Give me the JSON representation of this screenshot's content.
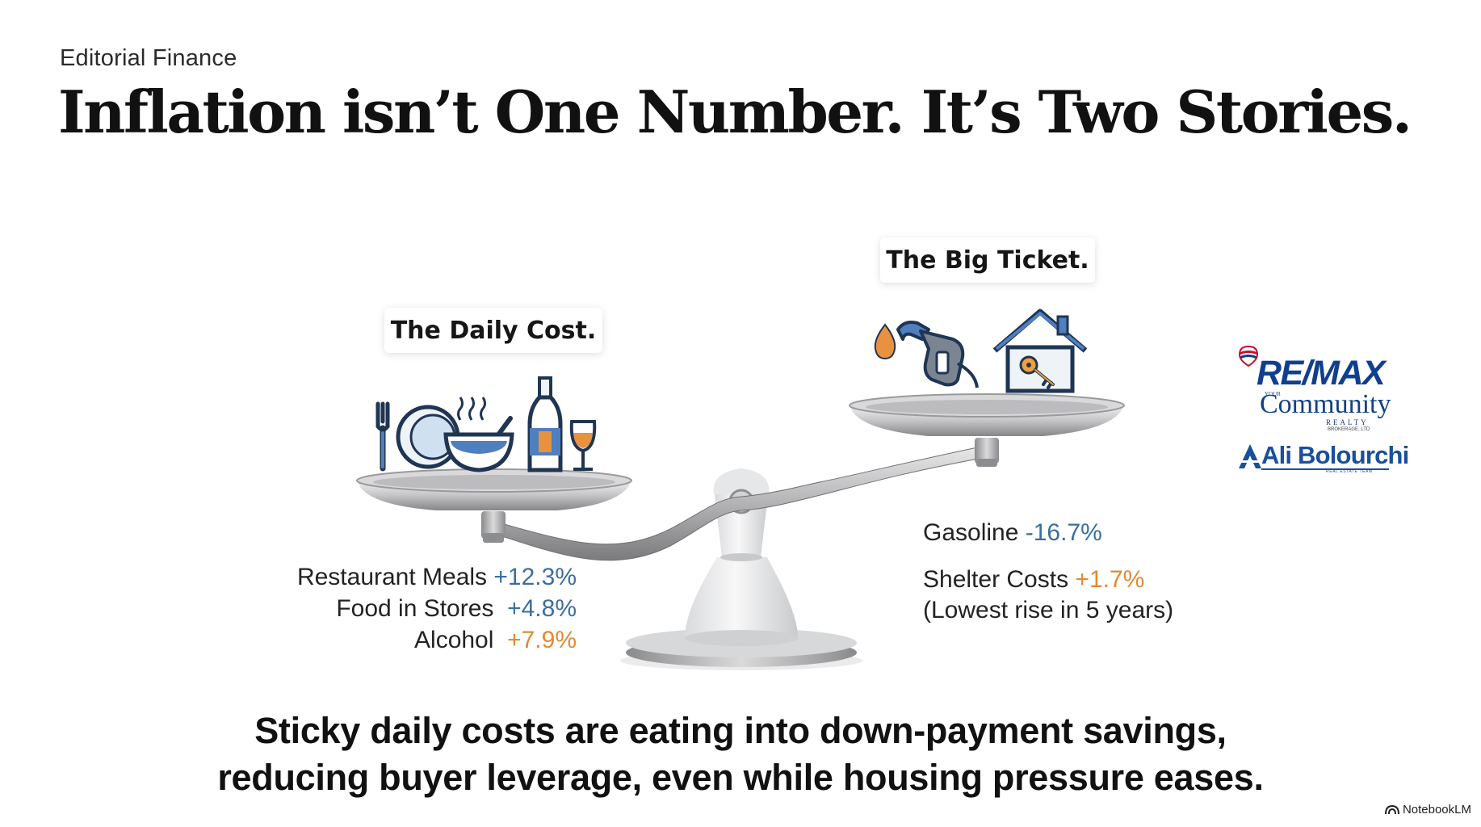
{
  "header": {
    "kicker": "Editorial Finance",
    "headline": "Inflation isn’t One Number. It’s Two Stories."
  },
  "scale": {
    "left_label": "The Daily Cost.",
    "right_label": "The Big Ticket.",
    "left_icons": [
      "fork-icon",
      "plate-icon",
      "soup-bowl-icon",
      "wine-bottle-icon",
      "wine-glass-icon"
    ],
    "right_icons": [
      "oil-drop-icon",
      "fuel-nozzle-icon",
      "house-key-icon"
    ]
  },
  "daily_costs": [
    {
      "label": "Restaurant Meals",
      "value": "+12.3%",
      "color": "#3b6ea0"
    },
    {
      "label": "Food in Stores",
      "value": "+4.8%",
      "color": "#3b6ea0"
    },
    {
      "label": "Alcohol",
      "value": "+7.9%",
      "color": "#e08a33"
    }
  ],
  "big_ticket": {
    "gasoline": {
      "label": "Gasoline",
      "value": "-16.7%",
      "color": "#3b6ea0"
    },
    "shelter": {
      "label": "Shelter Costs",
      "value": "+1.7%",
      "color": "#e08a33",
      "note": "(Lowest rise in 5 years)"
    }
  },
  "takeaway": {
    "line1": "Sticky daily costs are eating into down-payment savings,",
    "line2": "reducing buyer leverage, even while housing pressure eases."
  },
  "branding": {
    "remax": "RE/MAX",
    "your": "YOUR",
    "community": "Community",
    "realty": "REALTY",
    "brokerage": "BROKERAGE, LTD",
    "team": "Ali Bolourchi",
    "team_sub": "REAL ESTATE TEAM",
    "notebook": "NotebookLM"
  },
  "colors": {
    "accent_blue": "#3b6ea0",
    "accent_orange": "#e08a33",
    "brand_blue": "#0f3f8f"
  }
}
